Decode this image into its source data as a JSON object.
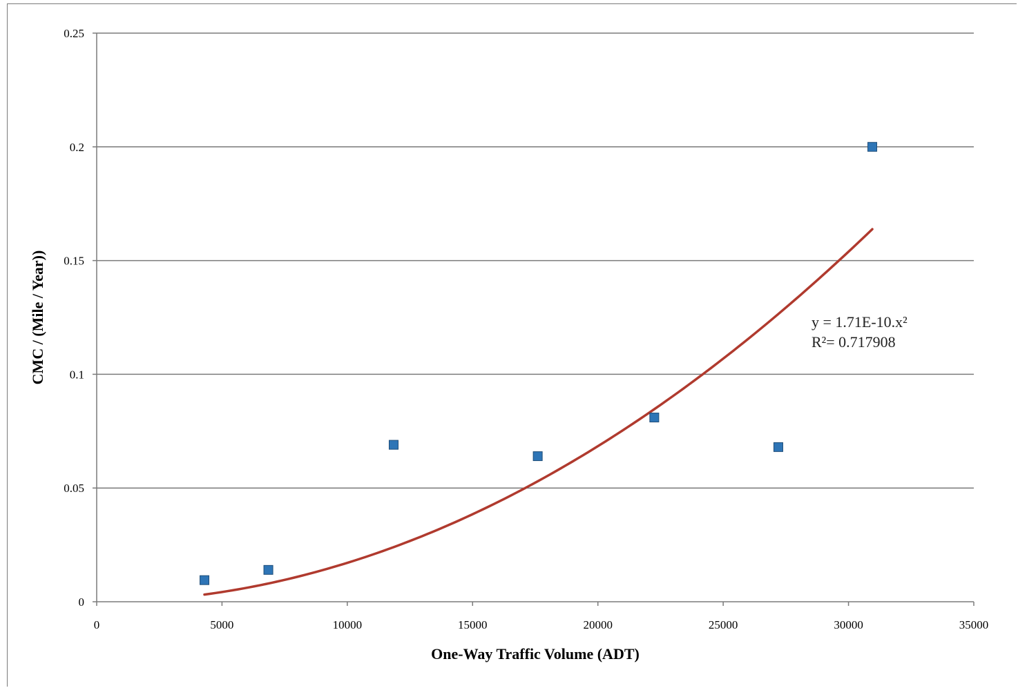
{
  "chart_data": {
    "type": "scatter",
    "xlabel": "One-Way Traffic Volume (ADT)",
    "ylabel": "CMC / (Mile / Year))",
    "xlim": [
      0,
      35000
    ],
    "ylim": [
      0,
      0.25
    ],
    "x_ticks": [
      0,
      5000,
      10000,
      15000,
      20000,
      25000,
      30000,
      35000
    ],
    "x_tick_labels": [
      "0",
      "5000",
      "10000",
      "15000",
      "20000",
      "25000",
      "30000",
      "35000"
    ],
    "y_ticks": [
      0,
      0.05,
      0.1,
      0.15,
      0.2,
      0.25
    ],
    "y_tick_labels": [
      "0",
      "0.05",
      "0.1",
      "0.15",
      "0.2",
      "0.25"
    ],
    "grid": "horizontal",
    "points": [
      {
        "x": 4300,
        "y": 0.0095
      },
      {
        "x": 6850,
        "y": 0.014
      },
      {
        "x": 11850,
        "y": 0.069
      },
      {
        "x": 17600,
        "y": 0.064
      },
      {
        "x": 22250,
        "y": 0.081
      },
      {
        "x": 27200,
        "y": 0.068
      },
      {
        "x": 30950,
        "y": 0.2
      }
    ],
    "trendline": {
      "type": "power",
      "coefficient": 1.71e-10,
      "exponent": 2,
      "x_range": [
        4300,
        30950
      ]
    },
    "annotations": {
      "equation": "y = 1.71E-10.x²",
      "r_squared": "R²= 0.717908"
    },
    "colors": {
      "marker": "#2e75b6",
      "marker_edge": "#1f4e79",
      "trendline": "#b03a2e",
      "grid": "#7a7a7a"
    }
  }
}
